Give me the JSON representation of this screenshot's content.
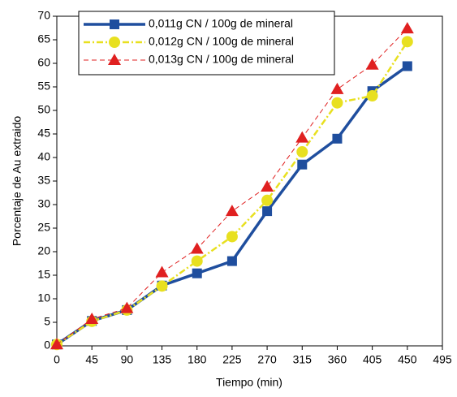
{
  "chart_data": {
    "type": "line",
    "xlabel": "Tiempo (min)",
    "ylabel": "Porcentaje de Au extraido",
    "x": [
      0,
      45,
      90,
      135,
      180,
      225,
      270,
      315,
      360,
      405,
      450
    ],
    "series": [
      {
        "name": "0,011g CN / 100g de mineral",
        "color": "#1f4e9e",
        "marker": "square",
        "dash": "solid",
        "values": [
          0.3,
          5.3,
          7.6,
          12.8,
          15.4,
          18,
          28.6,
          38.5,
          44,
          54.1,
          59.4
        ]
      },
      {
        "name": "0,012g CN / 100g de mineral",
        "color": "#e8e020",
        "marker": "circle",
        "dash": "dashdot",
        "values": [
          0.3,
          5.2,
          7.6,
          12.7,
          18,
          23.2,
          30.9,
          41.2,
          51.6,
          53.1,
          64.6
        ]
      },
      {
        "name": "0,013g CN / 100g de mineral",
        "color": "#e02020",
        "marker": "triangle",
        "dash": "dashed",
        "values": [
          0.3,
          5.7,
          8,
          15.6,
          20.6,
          28.6,
          33.8,
          44.2,
          54.5,
          59.7,
          67.4
        ]
      }
    ],
    "xlim": [
      0,
      495
    ],
    "xticks": [
      0,
      45,
      90,
      135,
      180,
      225,
      270,
      315,
      360,
      405,
      450,
      495
    ],
    "ylim": [
      0,
      70
    ],
    "yticks": [
      0,
      5,
      10,
      15,
      20,
      25,
      30,
      35,
      40,
      45,
      50,
      55,
      60,
      65,
      70
    ],
    "legend": "upper-left"
  }
}
